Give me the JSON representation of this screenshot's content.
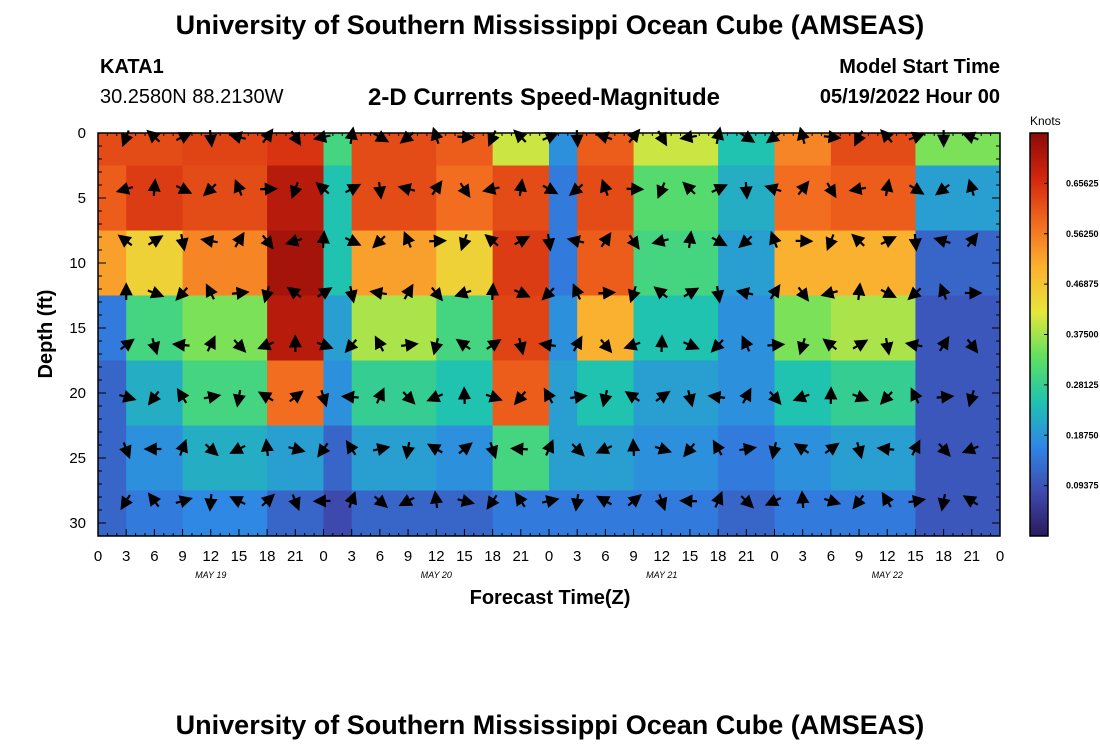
{
  "header": {
    "title": "University of Southern Mississippi Ocean Cube (AMSEAS)",
    "station": "KATA1",
    "coordinates": "30.2580N  88.2130W",
    "subtitle": "2-D Currents Speed-Magnitude",
    "model_start_label": "Model Start Time",
    "model_start_value": "05/19/2022 Hour 00"
  },
  "footer": {
    "title": "University of Southern Mississippi Ocean Cube (AMSEAS)"
  },
  "chart_data": {
    "type": "heatmap",
    "title": "2-D Currents Speed-Magnitude",
    "xlabel": "Forecast Time(Z)",
    "ylabel": "Depth (ft)",
    "xlim": [
      0,
      96
    ],
    "ylim": [
      0,
      31
    ],
    "y_inverted": true,
    "x_ticks": [
      0,
      3,
      6,
      9,
      12,
      15,
      18,
      21,
      24,
      27,
      30,
      33,
      36,
      39,
      42,
      45,
      48,
      51,
      54,
      57,
      60,
      63,
      66,
      69,
      72,
      75,
      78,
      81,
      84,
      87,
      90,
      93,
      96
    ],
    "x_tick_labels": [
      "0",
      "3",
      "6",
      "9",
      "12",
      "15",
      "18",
      "21",
      "0",
      "3",
      "6",
      "9",
      "12",
      "15",
      "18",
      "21",
      "0",
      "3",
      "6",
      "9",
      "12",
      "15",
      "18",
      "21",
      "0",
      "3",
      "6",
      "9",
      "12",
      "15",
      "18",
      "21",
      "0"
    ],
    "y_ticks": [
      0,
      5,
      10,
      15,
      20,
      25,
      30
    ],
    "y_tick_labels": [
      "0",
      "5",
      "10",
      "15",
      "20",
      "25",
      "30"
    ],
    "date_labels": [
      {
        "hour": 12,
        "text": "MAY 19"
      },
      {
        "hour": 36,
        "text": "MAY 20"
      },
      {
        "hour": 60,
        "text": "MAY 21"
      },
      {
        "hour": 84,
        "text": "MAY 22"
      }
    ],
    "colorbar": {
      "unit_label": "Knots",
      "range": [
        0,
        0.75
      ],
      "tick_values": [
        0.09375,
        0.1875,
        0.28125,
        0.375,
        0.46875,
        0.5625,
        0.65625
      ],
      "tick_labels": [
        "0.09375",
        "0.18750",
        "0.28125",
        "0.37500",
        "0.46875",
        "0.56250",
        "0.65625"
      ],
      "colors": [
        "#2a1a5e",
        "#3f4bb0",
        "#2f86e6",
        "#1fc3b0",
        "#5fe060",
        "#e6e63a",
        "#fbb130",
        "#f26a1e",
        "#d2260e",
        "#8c0a08"
      ]
    },
    "speed_bands_knots": [
      {
        "start_hour": 0,
        "end_hour": 3,
        "values_by_depth_ft": {
          "0": 0.62,
          "5": 0.6,
          "10": 0.52,
          "15": 0.15,
          "20": 0.12,
          "25": 0.12,
          "30": 0.12
        }
      },
      {
        "start_hour": 3,
        "end_hour": 9,
        "values_by_depth_ft": {
          "0": 0.62,
          "5": 0.64,
          "10": 0.45,
          "15": 0.3,
          "20": 0.22,
          "25": 0.18,
          "30": 0.15
        }
      },
      {
        "start_hour": 9,
        "end_hour": 18,
        "values_by_depth_ft": {
          "0": 0.63,
          "5": 0.62,
          "10": 0.55,
          "15": 0.35,
          "20": 0.3,
          "25": 0.22,
          "30": 0.17
        }
      },
      {
        "start_hour": 18,
        "end_hour": 24,
        "values_by_depth_ft": {
          "0": 0.65,
          "5": 0.7,
          "10": 0.72,
          "15": 0.7,
          "20": 0.58,
          "25": 0.2,
          "30": 0.12
        }
      },
      {
        "start_hour": 24,
        "end_hour": 27,
        "values_by_depth_ft": {
          "0": 0.3,
          "5": 0.25,
          "10": 0.25,
          "15": 0.2,
          "20": 0.18,
          "25": 0.12,
          "30": 0.08
        }
      },
      {
        "start_hour": 27,
        "end_hour": 36,
        "values_by_depth_ft": {
          "0": 0.62,
          "5": 0.62,
          "10": 0.52,
          "15": 0.38,
          "20": 0.28,
          "25": 0.2,
          "30": 0.12
        }
      },
      {
        "start_hour": 36,
        "end_hour": 42,
        "values_by_depth_ft": {
          "0": 0.6,
          "5": 0.58,
          "10": 0.45,
          "15": 0.3,
          "20": 0.25,
          "25": 0.18,
          "30": 0.12
        }
      },
      {
        "start_hour": 42,
        "end_hour": 48,
        "values_by_depth_ft": {
          "0": 0.4,
          "5": 0.62,
          "10": 0.64,
          "15": 0.63,
          "20": 0.6,
          "25": 0.3,
          "30": 0.15
        }
      },
      {
        "start_hour": 48,
        "end_hour": 51,
        "values_by_depth_ft": {
          "0": 0.18,
          "5": 0.15,
          "10": 0.15,
          "15": 0.18,
          "20": 0.2,
          "25": 0.2,
          "30": 0.15
        }
      },
      {
        "start_hour": 51,
        "end_hour": 57,
        "values_by_depth_ft": {
          "0": 0.6,
          "5": 0.62,
          "10": 0.6,
          "15": 0.5,
          "20": 0.25,
          "25": 0.2,
          "30": 0.15
        }
      },
      {
        "start_hour": 57,
        "end_hour": 66,
        "values_by_depth_ft": {
          "0": 0.4,
          "5": 0.32,
          "10": 0.3,
          "15": 0.25,
          "20": 0.2,
          "25": 0.18,
          "30": 0.15
        }
      },
      {
        "start_hour": 66,
        "end_hour": 72,
        "values_by_depth_ft": {
          "0": 0.25,
          "5": 0.22,
          "10": 0.2,
          "15": 0.18,
          "20": 0.18,
          "25": 0.15,
          "30": 0.12
        }
      },
      {
        "start_hour": 72,
        "end_hour": 78,
        "values_by_depth_ft": {
          "0": 0.55,
          "5": 0.58,
          "10": 0.5,
          "15": 0.35,
          "20": 0.25,
          "25": 0.18,
          "30": 0.15
        }
      },
      {
        "start_hour": 78,
        "end_hour": 87,
        "values_by_depth_ft": {
          "0": 0.62,
          "5": 0.6,
          "10": 0.5,
          "15": 0.38,
          "20": 0.28,
          "25": 0.2,
          "30": 0.15
        }
      },
      {
        "start_hour": 87,
        "end_hour": 96,
        "values_by_depth_ft": {
          "0": 0.35,
          "5": 0.2,
          "10": 0.12,
          "15": 0.1,
          "20": 0.1,
          "25": 0.1,
          "30": 0.1
        }
      }
    ]
  }
}
